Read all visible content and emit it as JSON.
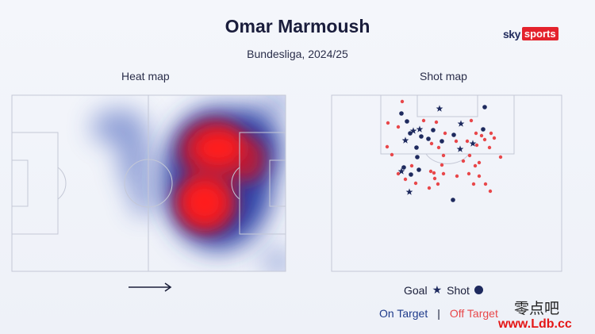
{
  "header": {
    "title": "Omar Marmoush",
    "subtitle": "Bundesliga, 2024/25"
  },
  "brand": {
    "sky": "sky",
    "sports": "sports"
  },
  "panels": {
    "heat_map_label": "Heat map",
    "shot_map_label": "Shot map"
  },
  "legend": {
    "goal": "Goal",
    "shot": "Shot",
    "on_target": "On Target",
    "separator": "|",
    "off_target": "Off Target"
  },
  "watermark": {
    "line1": "零点吧",
    "line2": "www.Ldb.cc"
  },
  "colors": {
    "on_target": "#1e2a5e",
    "off_target": "#e8474a",
    "pitch_line": "#c4c8d6",
    "brand_red": "#e4222c"
  },
  "icons": {
    "attack_direction": "arrow-right-icon",
    "goal_marker": "star-icon",
    "shot_marker": "dot-icon"
  },
  "shot_map": {
    "goals": [
      [
        554,
        137
      ],
      [
        521,
        165
      ],
      [
        529,
        163
      ],
      [
        511,
        177
      ],
      [
        581,
        156
      ],
      [
        596,
        181
      ],
      [
        580,
        188
      ],
      [
        506,
        216
      ],
      [
        516,
        242
      ]
    ],
    "on_target_shots": [
      [
        611,
        135
      ],
      [
        506,
        143
      ],
      [
        513,
        153
      ],
      [
        517,
        168
      ],
      [
        546,
        164
      ],
      [
        531,
        172
      ],
      [
        540,
        175
      ],
      [
        525,
        186
      ],
      [
        557,
        178
      ],
      [
        609,
        163
      ],
      [
        572,
        170
      ],
      [
        526,
        198
      ],
      [
        528,
        214
      ],
      [
        509,
        211
      ],
      [
        518,
        220
      ],
      [
        571,
        252
      ]
    ],
    "off_target_shots": [
      [
        507,
        128
      ],
      [
        489,
        155
      ],
      [
        502,
        160
      ],
      [
        534,
        152
      ],
      [
        550,
        154
      ],
      [
        561,
        168
      ],
      [
        553,
        186
      ],
      [
        594,
        152
      ],
      [
        600,
        168
      ],
      [
        619,
        168
      ],
      [
        623,
        174
      ],
      [
        607,
        171
      ],
      [
        617,
        186
      ],
      [
        601,
        183
      ],
      [
        631,
        198
      ],
      [
        488,
        185
      ],
      [
        494,
        195
      ],
      [
        544,
        181
      ],
      [
        575,
        178
      ],
      [
        589,
        178
      ],
      [
        592,
        196
      ],
      [
        584,
        203
      ],
      [
        599,
        209
      ],
      [
        604,
        205
      ],
      [
        502,
        219
      ],
      [
        511,
        226
      ],
      [
        524,
        231
      ],
      [
        543,
        216
      ],
      [
        559,
        219
      ],
      [
        552,
        232
      ],
      [
        541,
        237
      ],
      [
        547,
        218
      ],
      [
        591,
        219
      ],
      [
        604,
        222
      ],
      [
        597,
        232
      ],
      [
        612,
        232
      ],
      [
        618,
        241
      ],
      [
        611,
        176
      ],
      [
        557,
        208
      ],
      [
        559,
        196
      ],
      [
        576,
        222
      ],
      [
        548,
        225
      ],
      [
        519,
        209
      ]
    ]
  }
}
